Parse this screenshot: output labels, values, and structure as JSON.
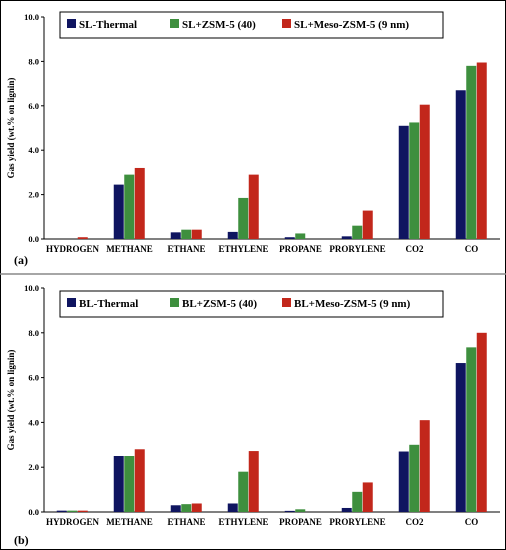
{
  "chart_data": [
    {
      "type": "bar",
      "panel_label": "(a)",
      "ylabel": "Gas yield (wt.% on lignin)",
      "ylim": [
        0,
        10
      ],
      "yticks": [
        "0.0",
        "2.0",
        "4.0",
        "6.0",
        "8.0",
        "10.0"
      ],
      "categories": [
        "HYDROGEN",
        "METHANE",
        "ETHANE",
        "ETHYLENE",
        "PROPANE",
        "PRORYLENE",
        "CO2",
        "CO"
      ],
      "series": [
        {
          "name": "SL-Thermal",
          "color": "#0f1560",
          "values": [
            0.0,
            2.45,
            0.3,
            0.32,
            0.08,
            0.12,
            5.1,
            6.7
          ]
        },
        {
          "name": "SL+ZSM-5 (40)",
          "color": "#3e8f3e",
          "values": [
            0.0,
            2.9,
            0.42,
            1.85,
            0.25,
            0.6,
            5.25,
            7.8
          ]
        },
        {
          "name": "SL+Meso-ZSM-5 (9 nm)",
          "color": "#c2271b",
          "values": [
            0.08,
            3.2,
            0.42,
            2.9,
            0.0,
            1.28,
            6.05,
            7.95
          ]
        }
      ],
      "legend_position": "top-center"
    },
    {
      "type": "bar",
      "panel_label": "(b)",
      "ylabel": "Gas yield (wt.% on lignin)",
      "ylim": [
        0,
        10
      ],
      "yticks": [
        "0.0",
        "2.0",
        "4.0",
        "6.0",
        "8.0",
        "10.0"
      ],
      "categories": [
        "HYDROGEN",
        "METHANE",
        "ETHANE",
        "ETHYLENE",
        "PROPANE",
        "PRORYLENE",
        "CO2",
        "CO"
      ],
      "series": [
        {
          "name": "BL-Thermal",
          "color": "#0f1560",
          "values": [
            0.06,
            2.5,
            0.3,
            0.38,
            0.05,
            0.18,
            2.7,
            6.65
          ]
        },
        {
          "name": "BL+ZSM-5 (40)",
          "color": "#3e8f3e",
          "values": [
            0.06,
            2.5,
            0.35,
            1.8,
            0.12,
            0.9,
            3.0,
            7.35
          ]
        },
        {
          "name": "BL+Meso-ZSM-5 (9 nm)",
          "color": "#c2271b",
          "values": [
            0.06,
            2.8,
            0.38,
            2.72,
            0.0,
            1.32,
            4.1,
            8.0
          ]
        }
      ],
      "legend_position": "top-center"
    }
  ]
}
